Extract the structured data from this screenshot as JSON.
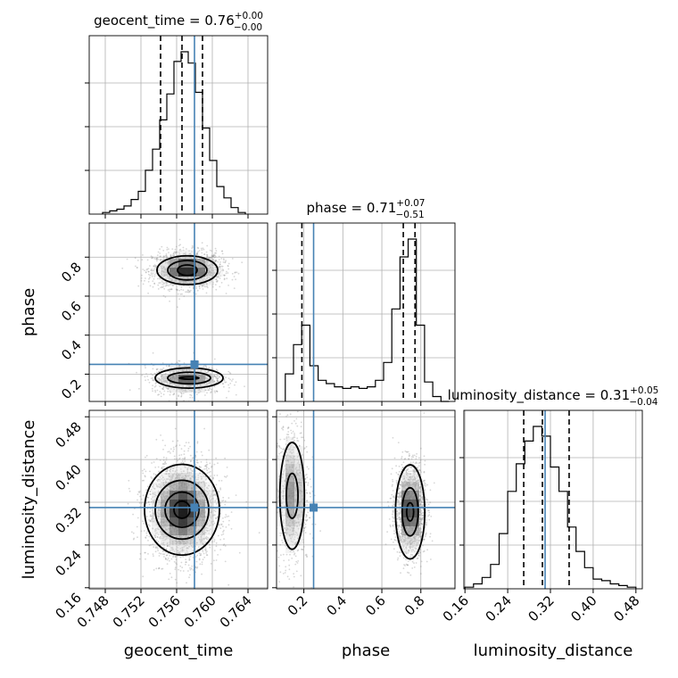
{
  "chart_data": {
    "type": "corner",
    "parameters": [
      "geocent_time",
      "phase",
      "luminosity_distance"
    ],
    "titles": [
      {
        "param": "geocent_time",
        "prefix": "geocent_time = ",
        "value": "0.76",
        "plus": "+0.00",
        "minus": "−0.00"
      },
      {
        "param": "phase",
        "prefix": "phase = ",
        "value": "0.71",
        "plus": "+0.07",
        "minus": "−0.51"
      },
      {
        "param": "luminosity_distance",
        "prefix": "luminosity_distance = ",
        "value": "0.31",
        "plus": "+0.05",
        "minus": "−0.04"
      }
    ],
    "truths": {
      "geocent_time": 0.758,
      "phase": 0.25,
      "luminosity_distance": 0.31
    },
    "ranges": {
      "geocent_time": [
        0.7462,
        0.7662
      ],
      "phase": [
        0.06,
        0.975
      ],
      "luminosity_distance": [
        0.158,
        0.492
      ]
    },
    "ticks": {
      "geocent_time": [
        "0.748",
        "0.752",
        "0.756",
        "0.760",
        "0.764"
      ],
      "phase": [
        "0.2",
        "0.4",
        "0.6",
        "0.8"
      ],
      "luminosity_distance": [
        "0.16",
        "0.24",
        "0.32",
        "0.40",
        "0.48"
      ]
    },
    "quantiles": {
      "geocent_time": [
        0.7542,
        0.7566,
        0.7589
      ],
      "phase": [
        0.19,
        0.71,
        0.77
      ],
      "luminosity_distance": [
        0.27,
        0.305,
        0.355
      ]
    },
    "histograms": {
      "geocent_time": {
        "edges": [
          0.7477,
          0.7485,
          0.7493,
          0.7501,
          0.7509,
          0.7517,
          0.7525,
          0.7533,
          0.7541,
          0.7549,
          0.7557,
          0.7565,
          0.7573,
          0.7581,
          0.7589,
          0.7597,
          0.7605,
          0.7613,
          0.7621,
          0.7629,
          0.7637
        ],
        "counts": [
          1,
          2,
          3,
          5,
          9,
          14,
          27,
          40,
          58,
          74,
          94,
          100,
          93,
          75,
          53,
          33,
          17,
          10,
          4,
          1
        ]
      },
      "phase": {
        "edges": [
          0.105,
          0.147,
          0.189,
          0.231,
          0.273,
          0.315,
          0.357,
          0.399,
          0.441,
          0.483,
          0.525,
          0.567,
          0.609,
          0.651,
          0.693,
          0.735,
          0.777,
          0.819,
          0.861,
          0.903,
          0.945
        ],
        "counts": [
          17,
          35,
          47,
          22,
          13,
          11,
          9,
          8,
          9,
          8,
          9,
          13,
          24,
          57,
          89,
          100,
          47,
          12,
          3,
          0
        ]
      },
      "luminosity_distance": {
        "edges": [
          0.16,
          0.176,
          0.192,
          0.208,
          0.224,
          0.24,
          0.256,
          0.272,
          0.288,
          0.304,
          0.32,
          0.336,
          0.352,
          0.368,
          0.384,
          0.4,
          0.416,
          0.432,
          0.448,
          0.464,
          0.48
        ],
        "counts": [
          1,
          3,
          7,
          15,
          34,
          60,
          77,
          91,
          100,
          94,
          75,
          60,
          38,
          23,
          13,
          6,
          5,
          3,
          2,
          1
        ]
      }
    },
    "joint": [
      {
        "x": "geocent_time",
        "y": "phase",
        "modes": [
          {
            "cx": 0.7572,
            "cy": 0.735,
            "sx": 0.00155,
            "sy": 0.038,
            "weight": 0.62
          },
          {
            "cx": 0.7572,
            "cy": 0.175,
            "sx": 0.00155,
            "sy": 0.03,
            "weight": 0.38
          }
        ],
        "contours": [
          {
            "cx": 0.7572,
            "cy": 0.733,
            "rx": [
              0.0011,
              0.0022,
              0.0034
            ],
            "ry": [
              0.027,
              0.05,
              0.074
            ]
          },
          {
            "cx": 0.7574,
            "cy": 0.18,
            "rx": [
              0.0011,
              0.0024,
              0.0038
            ],
            "ry": [
              0.006,
              0.03,
              0.052
            ]
          }
        ]
      },
      {
        "x": "geocent_time",
        "y": "luminosity_distance",
        "modes": [
          {
            "cx": 0.7567,
            "cy": 0.305,
            "sx": 0.0016,
            "sy": 0.037,
            "weight": 1
          }
        ],
        "contours": [
          {
            "cx": 0.7566,
            "cy": 0.306,
            "rx": [
              0.0009,
              0.0019,
              0.003,
              0.0042
            ],
            "ry": [
              0.016,
              0.033,
              0.055,
              0.085
            ]
          }
        ]
      },
      {
        "x": "phase",
        "y": "luminosity_distance",
        "modes": [
          {
            "cx": 0.745,
            "cy": 0.305,
            "sx": 0.03,
            "sy": 0.034,
            "weight": 0.7
          },
          {
            "cx": 0.14,
            "cy": 0.335,
            "sx": 0.035,
            "sy": 0.055,
            "weight": 0.3
          }
        ],
        "contours": [
          {
            "cx": 0.745,
            "cy": 0.302,
            "rx": [
              0.018,
              0.041,
              0.075
            ],
            "ry": [
              0.017,
              0.045,
              0.088
            ]
          },
          {
            "cx": 0.14,
            "cy": 0.332,
            "rx": [
              0.03,
              0.063
            ],
            "ry": [
              0.042,
              0.1
            ]
          }
        ]
      }
    ]
  }
}
